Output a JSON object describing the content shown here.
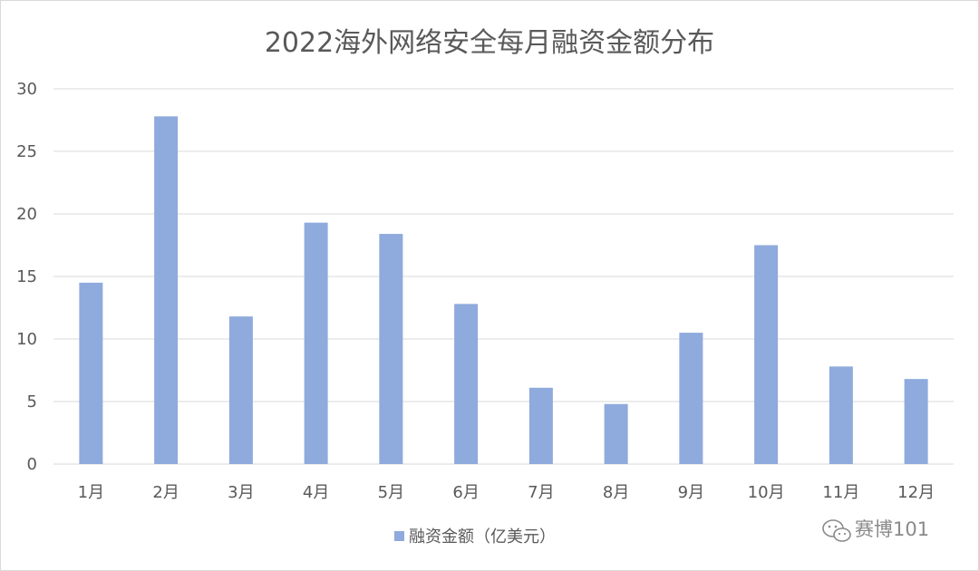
{
  "chart_data": {
    "type": "bar",
    "title": "2022海外网络安全每月融资金额分布",
    "categories": [
      "1月",
      "2月",
      "3月",
      "4月",
      "5月",
      "6月",
      "7月",
      "8月",
      "9月",
      "10月",
      "11月",
      "12月"
    ],
    "series": [
      {
        "name": "融资金额（亿美元）",
        "values": [
          14.5,
          27.8,
          11.8,
          19.3,
          18.4,
          12.8,
          6.1,
          4.8,
          10.5,
          17.5,
          7.8,
          6.8
        ]
      }
    ],
    "ylim": [
      0,
      30
    ],
    "yticks": [
      0,
      5,
      10,
      15,
      20,
      25,
      30
    ],
    "grid": true,
    "legend_position": "bottom",
    "bar_color": "#8faadc",
    "grid_color": "#d9d9d9",
    "text_color": "#595959"
  },
  "watermark": {
    "text": "赛博101",
    "icon": "wechat-icon"
  }
}
